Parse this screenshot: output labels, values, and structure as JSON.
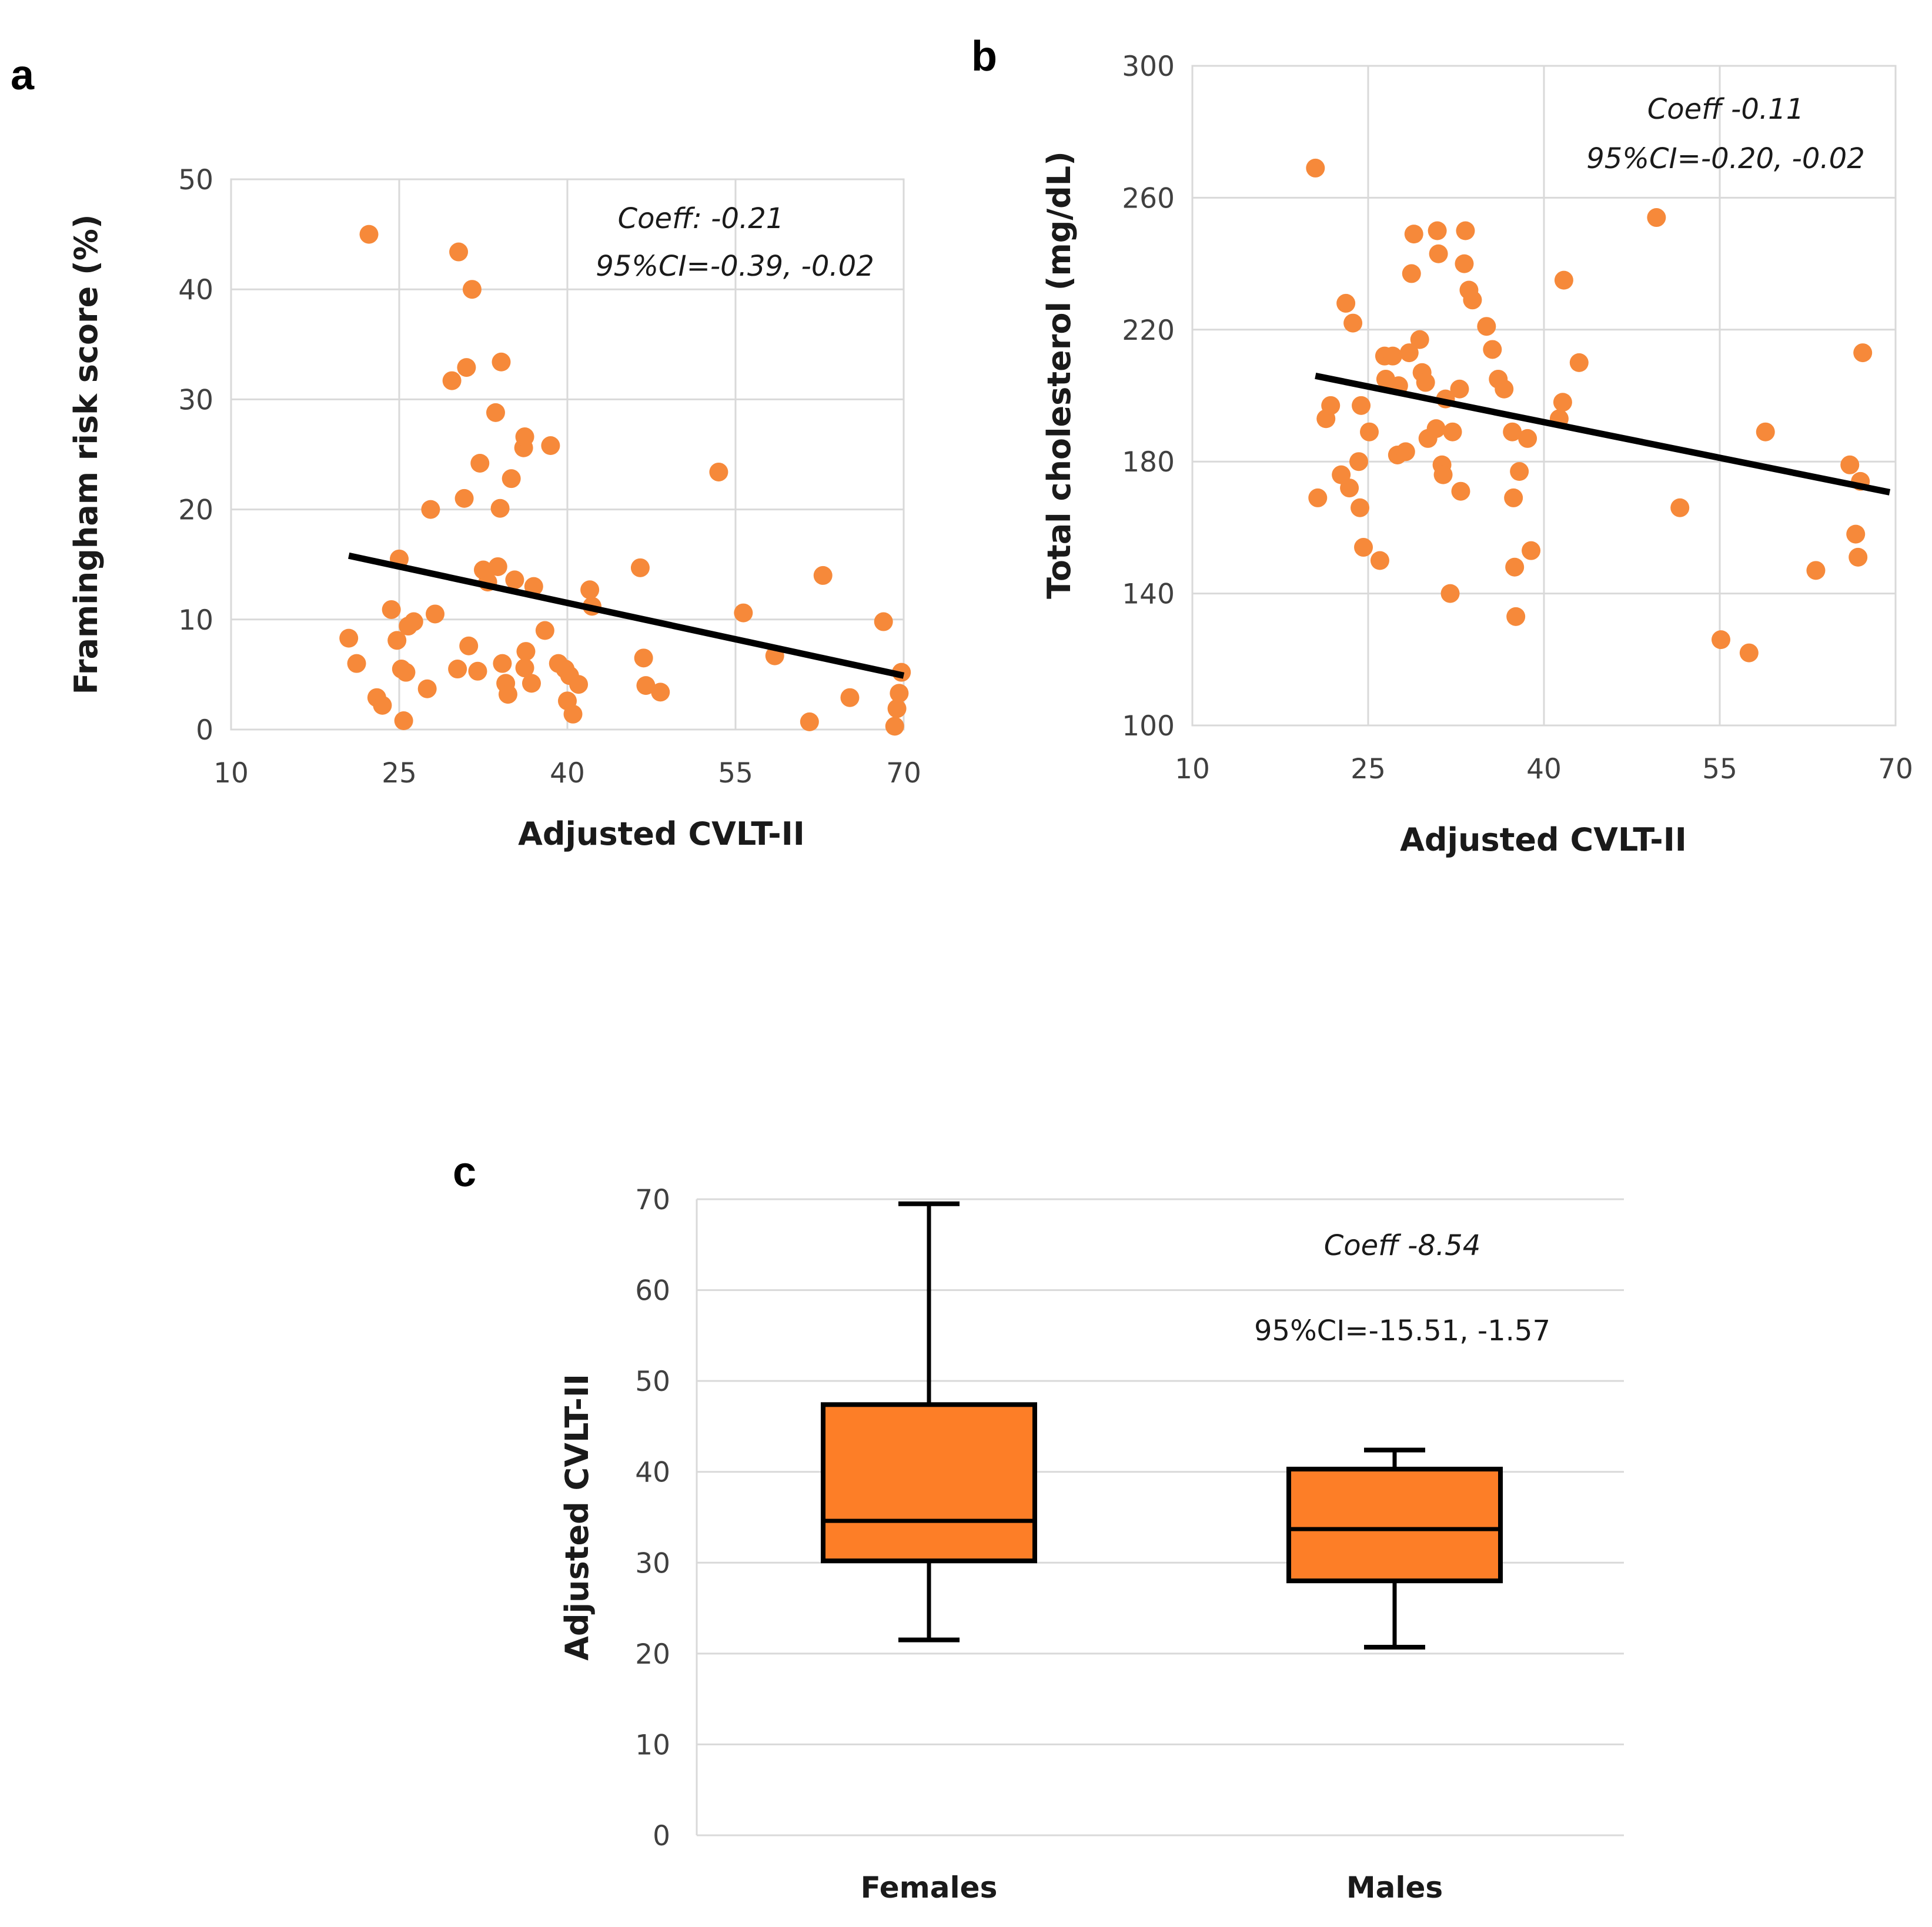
{
  "colors": {
    "marker": "#f6893a",
    "box_fill": "#fd7e27",
    "line": "#000000",
    "grid": "#d9d9d9"
  },
  "chart_data": [
    {
      "panel": "a",
      "type": "scatter",
      "title": "",
      "xlabel": "Adjusted CVLT-II",
      "ylabel": "Framingham risk score (%)",
      "xlim": [
        10,
        70
      ],
      "ylim": [
        0,
        50
      ],
      "xticks": [
        "10",
        "25",
        "40",
        "55",
        "70"
      ],
      "yticks": [
        "0",
        "10",
        "20",
        "30",
        "40",
        "50"
      ],
      "annotation": [
        "Coeff: -0.21",
        "95%CI=-0.39, -0.02"
      ],
      "trendline": {
        "x": [
          20.5,
          70
        ],
        "y": [
          15.8,
          4.9
        ]
      },
      "points": [
        [
          20.5,
          8.3
        ],
        [
          21.2,
          6.0
        ],
        [
          22.3,
          45.0
        ],
        [
          23.0,
          2.9
        ],
        [
          23.5,
          2.2
        ],
        [
          24.3,
          10.9
        ],
        [
          24.8,
          8.1
        ],
        [
          25.0,
          15.5
        ],
        [
          25.2,
          5.5
        ],
        [
          25.6,
          5.2
        ],
        [
          25.4,
          0.8
        ],
        [
          25.8,
          9.4
        ],
        [
          26.3,
          9.8
        ],
        [
          27.5,
          3.7
        ],
        [
          27.8,
          20.0
        ],
        [
          28.2,
          10.5
        ],
        [
          29.7,
          31.7
        ],
        [
          30.2,
          5.5
        ],
        [
          30.3,
          43.4
        ],
        [
          30.8,
          21.0
        ],
        [
          31.0,
          32.9
        ],
        [
          31.2,
          7.6
        ],
        [
          31.5,
          40.0
        ],
        [
          32.0,
          5.3
        ],
        [
          32.2,
          24.2
        ],
        [
          32.5,
          14.5
        ],
        [
          32.9,
          13.4
        ],
        [
          33.6,
          28.8
        ],
        [
          33.8,
          14.8
        ],
        [
          34.0,
          20.1
        ],
        [
          34.2,
          6.0
        ],
        [
          34.5,
          4.2
        ],
        [
          34.1,
          33.4
        ],
        [
          34.7,
          3.2
        ],
        [
          35.0,
          22.8
        ],
        [
          35.3,
          13.6
        ],
        [
          36.1,
          25.6
        ],
        [
          36.2,
          26.6
        ],
        [
          36.2,
          5.6
        ],
        [
          36.3,
          7.1
        ],
        [
          36.8,
          4.2
        ],
        [
          37.0,
          13.0
        ],
        [
          38.0,
          9.0
        ],
        [
          38.5,
          25.8
        ],
        [
          39.2,
          6.0
        ],
        [
          39.8,
          5.5
        ],
        [
          40.0,
          2.6
        ],
        [
          40.2,
          4.9
        ],
        [
          40.5,
          1.4
        ],
        [
          41.0,
          4.1
        ],
        [
          42.0,
          12.7
        ],
        [
          42.2,
          11.2
        ],
        [
          46.5,
          14.7
        ],
        [
          46.8,
          6.5
        ],
        [
          47.0,
          4.0
        ],
        [
          48.3,
          3.4
        ],
        [
          53.5,
          23.4
        ],
        [
          55.7,
          10.6
        ],
        [
          58.5,
          6.7
        ],
        [
          61.6,
          0.7
        ],
        [
          62.8,
          14.0
        ],
        [
          65.2,
          2.9
        ],
        [
          68.2,
          9.8
        ],
        [
          69.2,
          0.3
        ],
        [
          69.4,
          1.9
        ],
        [
          69.6,
          3.3
        ],
        [
          69.8,
          5.2
        ]
      ]
    },
    {
      "panel": "b",
      "type": "scatter",
      "title": "",
      "xlabel": "Adjusted CVLT-II",
      "ylabel": "Total cholesterol (mg/dL)",
      "xlim": [
        10,
        70
      ],
      "ylim": [
        100,
        300
      ],
      "xticks": [
        "10",
        "25",
        "40",
        "55",
        "70"
      ],
      "yticks": [
        "100",
        "140",
        "180",
        "220",
        "260",
        "300"
      ],
      "annotation": [
        "Coeff -0.11",
        "95%CI=-0.20, -0.02"
      ],
      "trendline": {
        "x": [
          20.5,
          69.5
        ],
        "y": [
          206.0,
          170.7
        ]
      },
      "points": [
        [
          20.5,
          269
        ],
        [
          20.7,
          169
        ],
        [
          21.4,
          193
        ],
        [
          21.8,
          197
        ],
        [
          22.7,
          176
        ],
        [
          23.1,
          228
        ],
        [
          23.4,
          172
        ],
        [
          23.7,
          222
        ],
        [
          24.2,
          180
        ],
        [
          24.4,
          197
        ],
        [
          24.6,
          154
        ],
        [
          24.3,
          166
        ],
        [
          25.1,
          189
        ],
        [
          26.0,
          150
        ],
        [
          26.4,
          212
        ],
        [
          26.5,
          205
        ],
        [
          27.1,
          212
        ],
        [
          27.6,
          203
        ],
        [
          27.5,
          182
        ],
        [
          28.2,
          183
        ],
        [
          28.5,
          213
        ],
        [
          28.7,
          237
        ],
        [
          28.9,
          249
        ],
        [
          29.4,
          217
        ],
        [
          29.6,
          207
        ],
        [
          29.9,
          204
        ],
        [
          30.1,
          187
        ],
        [
          30.8,
          190
        ],
        [
          30.9,
          250
        ],
        [
          31.0,
          243
        ],
        [
          31.3,
          179
        ],
        [
          31.4,
          176
        ],
        [
          31.6,
          199
        ],
        [
          32.0,
          140
        ],
        [
          32.2,
          189
        ],
        [
          32.8,
          202
        ],
        [
          32.9,
          171
        ],
        [
          33.2,
          240
        ],
        [
          33.3,
          250
        ],
        [
          33.6,
          232
        ],
        [
          33.9,
          229
        ],
        [
          35.1,
          221
        ],
        [
          35.6,
          214
        ],
        [
          36.1,
          205
        ],
        [
          36.6,
          202
        ],
        [
          37.3,
          189
        ],
        [
          37.4,
          169
        ],
        [
          37.5,
          148
        ],
        [
          37.6,
          133
        ],
        [
          37.9,
          177
        ],
        [
          38.6,
          187
        ],
        [
          38.9,
          153
        ],
        [
          41.3,
          193
        ],
        [
          41.6,
          198
        ],
        [
          41.7,
          235
        ],
        [
          43.0,
          210
        ],
        [
          49.6,
          254
        ],
        [
          51.6,
          166
        ],
        [
          55.1,
          126
        ],
        [
          57.5,
          122
        ],
        [
          58.9,
          189
        ],
        [
          63.2,
          147
        ],
        [
          66.1,
          179
        ],
        [
          66.6,
          158
        ],
        [
          66.8,
          151
        ],
        [
          67.0,
          174
        ],
        [
          67.2,
          213
        ]
      ]
    },
    {
      "panel": "c",
      "type": "box",
      "title": "",
      "xlabel": "",
      "ylabel": "Adjusted CVLT-II",
      "ylim": [
        0,
        70
      ],
      "yticks": [
        "0",
        "10",
        "20",
        "30",
        "40",
        "50",
        "60",
        "70"
      ],
      "annotation": [
        "Coeff -8.54",
        "95%CI=-15.51, -1.57"
      ],
      "categories": [
        "Females",
        "Males"
      ],
      "boxes": [
        {
          "name": "Females",
          "min": 21.5,
          "q1": 30.2,
          "median": 34.6,
          "q3": 47.4,
          "max": 69.5
        },
        {
          "name": "Males",
          "min": 20.7,
          "q1": 28.0,
          "median": 33.7,
          "q3": 40.3,
          "max": 42.4
        }
      ]
    }
  ]
}
